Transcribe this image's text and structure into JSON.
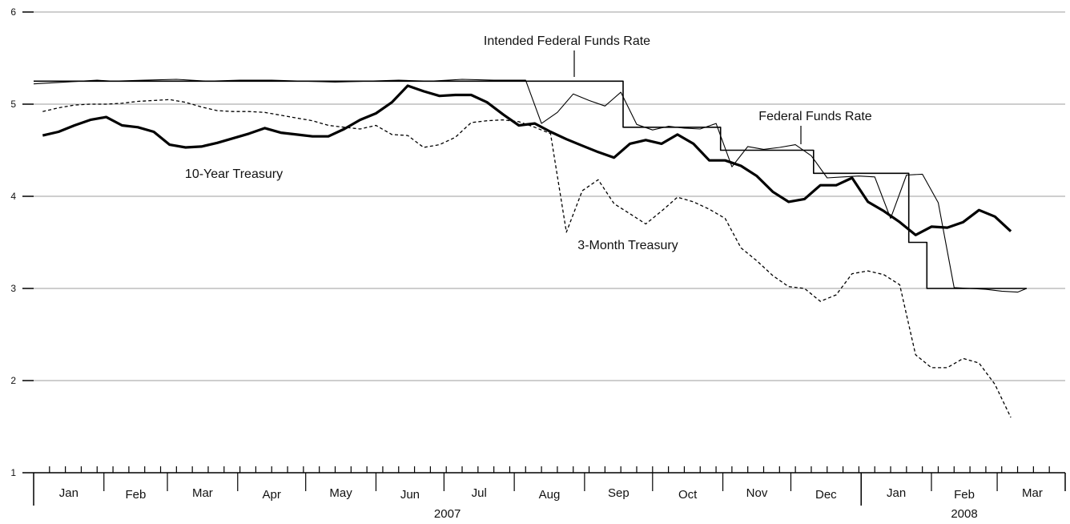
{
  "chart_data": {
    "type": "line",
    "title": "",
    "xlabel": "",
    "ylabel": "",
    "ylim": [
      1,
      6
    ],
    "yticks": [
      1,
      2,
      3,
      4,
      5,
      6
    ],
    "grid": true,
    "x_range": [
      "2007-01-01",
      "2008-03-31"
    ],
    "months": [
      {
        "label": "Jan",
        "start": "2007-01-01",
        "end": "2007-02-01"
      },
      {
        "label": "Feb",
        "start": "2007-02-01",
        "end": "2007-03-01"
      },
      {
        "label": "Mar",
        "start": "2007-03-01",
        "end": "2007-04-01"
      },
      {
        "label": "Apr",
        "start": "2007-04-01",
        "end": "2007-05-01"
      },
      {
        "label": "May",
        "start": "2007-05-01",
        "end": "2007-06-01"
      },
      {
        "label": "Jun",
        "start": "2007-06-01",
        "end": "2007-07-01"
      },
      {
        "label": "Jul",
        "start": "2007-07-01",
        "end": "2007-08-01"
      },
      {
        "label": "Aug",
        "start": "2007-08-01",
        "end": "2007-09-01"
      },
      {
        "label": "Sep",
        "start": "2007-09-01",
        "end": "2007-10-01"
      },
      {
        "label": "Oct",
        "start": "2007-10-01",
        "end": "2007-11-01"
      },
      {
        "label": "Nov",
        "start": "2007-11-01",
        "end": "2007-12-01"
      },
      {
        "label": "Dec",
        "start": "2007-12-01",
        "end": "2008-01-01"
      },
      {
        "label": "Jan",
        "start": "2008-01-01",
        "end": "2008-02-01"
      },
      {
        "label": "Feb",
        "start": "2008-02-01",
        "end": "2008-03-01"
      },
      {
        "label": "Mar",
        "start": "2008-03-01",
        "end": "2008-04-01"
      }
    ],
    "years": [
      {
        "label": "2007",
        "start": "2007-01-01",
        "end": "2008-01-01"
      },
      {
        "label": "2008",
        "start": "2008-01-01",
        "end": "2008-04-01"
      }
    ],
    "annotations": [
      {
        "text": "Intended Federal Funds Rate",
        "x": "2007-08-15",
        "y": 5.25
      },
      {
        "text": "Federal Funds Rate",
        "x": "2007-12-04",
        "y": 4.56
      },
      {
        "text": "10-Year Treasury",
        "x": "",
        "y": null
      },
      {
        "text": "3-Month Treasury",
        "x": "",
        "y": null
      }
    ],
    "series": [
      {
        "name": "Intended Federal Funds Rate",
        "style": "step",
        "color": "#000000",
        "points": [
          [
            "2007-01-01",
            5.25
          ],
          [
            "2007-09-18",
            5.25
          ],
          [
            "2007-09-18",
            4.75
          ],
          [
            "2007-10-31",
            4.75
          ],
          [
            "2007-10-31",
            4.5
          ],
          [
            "2007-12-11",
            4.5
          ],
          [
            "2007-12-11",
            4.25
          ],
          [
            "2008-01-22",
            4.25
          ],
          [
            "2008-01-22",
            3.5
          ],
          [
            "2008-01-30",
            3.5
          ],
          [
            "2008-01-30",
            3.0
          ],
          [
            "2008-03-14",
            3.0
          ]
        ]
      },
      {
        "name": "Federal Funds Rate",
        "style": "thin",
        "color": "#000000",
        "points": [
          [
            "2007-01-01",
            5.22
          ],
          [
            "2007-01-15",
            5.24
          ],
          [
            "2007-01-29",
            5.26
          ],
          [
            "2007-02-05",
            5.25
          ],
          [
            "2007-02-19",
            5.26
          ],
          [
            "2007-03-05",
            5.27
          ],
          [
            "2007-03-19",
            5.25
          ],
          [
            "2007-04-02",
            5.26
          ],
          [
            "2007-04-16",
            5.26
          ],
          [
            "2007-04-30",
            5.25
          ],
          [
            "2007-05-14",
            5.24
          ],
          [
            "2007-05-28",
            5.25
          ],
          [
            "2007-06-11",
            5.26
          ],
          [
            "2007-06-25",
            5.25
          ],
          [
            "2007-07-09",
            5.27
          ],
          [
            "2007-07-23",
            5.26
          ],
          [
            "2007-08-06",
            5.26
          ],
          [
            "2007-08-13",
            4.79
          ],
          [
            "2007-08-20",
            4.91
          ],
          [
            "2007-08-27",
            5.11
          ],
          [
            "2007-09-03",
            5.04
          ],
          [
            "2007-09-10",
            4.98
          ],
          [
            "2007-09-17",
            5.13
          ],
          [
            "2007-09-24",
            4.78
          ],
          [
            "2007-10-01",
            4.72
          ],
          [
            "2007-10-08",
            4.76
          ],
          [
            "2007-10-15",
            4.74
          ],
          [
            "2007-10-22",
            4.73
          ],
          [
            "2007-10-29",
            4.79
          ],
          [
            "2007-11-05",
            4.32
          ],
          [
            "2007-11-12",
            4.54
          ],
          [
            "2007-11-19",
            4.51
          ],
          [
            "2007-11-26",
            4.53
          ],
          [
            "2007-12-03",
            4.56
          ],
          [
            "2007-12-10",
            4.44
          ],
          [
            "2007-12-17",
            4.2
          ],
          [
            "2007-12-24",
            4.21
          ],
          [
            "2007-12-31",
            4.22
          ],
          [
            "2008-01-07",
            4.21
          ],
          [
            "2008-01-14",
            3.76
          ],
          [
            "2008-01-21",
            4.23
          ],
          [
            "2008-01-28",
            4.24
          ],
          [
            "2008-02-04",
            3.93
          ],
          [
            "2008-02-11",
            3.01
          ],
          [
            "2008-02-18",
            3.0
          ],
          [
            "2008-02-25",
            2.99
          ],
          [
            "2008-03-03",
            2.97
          ],
          [
            "2008-03-10",
            2.96
          ],
          [
            "2008-03-14",
            3.0
          ]
        ]
      },
      {
        "name": "10-Year Treasury",
        "style": "thick",
        "color": "#000000",
        "points": [
          [
            "2007-01-05",
            4.66
          ],
          [
            "2007-01-12",
            4.7
          ],
          [
            "2007-01-19",
            4.77
          ],
          [
            "2007-01-26",
            4.83
          ],
          [
            "2007-02-02",
            4.86
          ],
          [
            "2007-02-09",
            4.77
          ],
          [
            "2007-02-16",
            4.75
          ],
          [
            "2007-02-23",
            4.7
          ],
          [
            "2007-03-02",
            4.56
          ],
          [
            "2007-03-09",
            4.53
          ],
          [
            "2007-03-16",
            4.54
          ],
          [
            "2007-03-23",
            4.58
          ],
          [
            "2007-03-30",
            4.63
          ],
          [
            "2007-04-06",
            4.68
          ],
          [
            "2007-04-13",
            4.74
          ],
          [
            "2007-04-20",
            4.69
          ],
          [
            "2007-04-27",
            4.67
          ],
          [
            "2007-05-04",
            4.65
          ],
          [
            "2007-05-11",
            4.65
          ],
          [
            "2007-05-18",
            4.73
          ],
          [
            "2007-05-25",
            4.83
          ],
          [
            "2007-06-01",
            4.9
          ],
          [
            "2007-06-08",
            5.02
          ],
          [
            "2007-06-15",
            5.2
          ],
          [
            "2007-06-22",
            5.14
          ],
          [
            "2007-06-29",
            5.09
          ],
          [
            "2007-07-06",
            5.1
          ],
          [
            "2007-07-13",
            5.1
          ],
          [
            "2007-07-20",
            5.02
          ],
          [
            "2007-07-27",
            4.89
          ],
          [
            "2007-08-03",
            4.77
          ],
          [
            "2007-08-10",
            4.79
          ],
          [
            "2007-08-17",
            4.7
          ],
          [
            "2007-08-24",
            4.62
          ],
          [
            "2007-08-31",
            4.55
          ],
          [
            "2007-09-07",
            4.48
          ],
          [
            "2007-09-14",
            4.42
          ],
          [
            "2007-09-21",
            4.57
          ],
          [
            "2007-09-28",
            4.61
          ],
          [
            "2007-10-05",
            4.57
          ],
          [
            "2007-10-12",
            4.67
          ],
          [
            "2007-10-19",
            4.57
          ],
          [
            "2007-10-26",
            4.39
          ],
          [
            "2007-11-02",
            4.39
          ],
          [
            "2007-11-09",
            4.33
          ],
          [
            "2007-11-16",
            4.22
          ],
          [
            "2007-11-23",
            4.05
          ],
          [
            "2007-11-30",
            3.94
          ],
          [
            "2007-12-07",
            3.97
          ],
          [
            "2007-12-14",
            4.12
          ],
          [
            "2007-12-21",
            4.12
          ],
          [
            "2007-12-28",
            4.2
          ],
          [
            "2008-01-04",
            3.94
          ],
          [
            "2008-01-11",
            3.84
          ],
          [
            "2008-01-18",
            3.72
          ],
          [
            "2008-01-25",
            3.58
          ],
          [
            "2008-02-01",
            3.67
          ],
          [
            "2008-02-08",
            3.66
          ],
          [
            "2008-02-15",
            3.72
          ],
          [
            "2008-02-22",
            3.85
          ],
          [
            "2008-02-29",
            3.78
          ],
          [
            "2008-03-07",
            3.62
          ]
        ]
      },
      {
        "name": "3-Month Treasury",
        "style": "dashed",
        "color": "#000000",
        "points": [
          [
            "2007-01-05",
            4.92
          ],
          [
            "2007-01-12",
            4.96
          ],
          [
            "2007-01-19",
            4.99
          ],
          [
            "2007-01-26",
            5.0
          ],
          [
            "2007-02-02",
            5.0
          ],
          [
            "2007-02-09",
            5.01
          ],
          [
            "2007-02-16",
            5.03
          ],
          [
            "2007-02-23",
            5.04
          ],
          [
            "2007-03-02",
            5.05
          ],
          [
            "2007-03-09",
            5.02
          ],
          [
            "2007-03-16",
            4.97
          ],
          [
            "2007-03-23",
            4.93
          ],
          [
            "2007-03-30",
            4.92
          ],
          [
            "2007-04-06",
            4.92
          ],
          [
            "2007-04-13",
            4.91
          ],
          [
            "2007-04-20",
            4.88
          ],
          [
            "2007-04-27",
            4.85
          ],
          [
            "2007-05-04",
            4.82
          ],
          [
            "2007-05-11",
            4.77
          ],
          [
            "2007-05-18",
            4.75
          ],
          [
            "2007-05-25",
            4.73
          ],
          [
            "2007-06-01",
            4.77
          ],
          [
            "2007-06-08",
            4.67
          ],
          [
            "2007-06-15",
            4.66
          ],
          [
            "2007-06-22",
            4.53
          ],
          [
            "2007-06-29",
            4.56
          ],
          [
            "2007-07-06",
            4.64
          ],
          [
            "2007-07-13",
            4.8
          ],
          [
            "2007-07-20",
            4.82
          ],
          [
            "2007-07-27",
            4.83
          ],
          [
            "2007-08-03",
            4.81
          ],
          [
            "2007-08-10",
            4.75
          ],
          [
            "2007-08-17",
            4.68
          ],
          [
            "2007-08-24",
            3.61
          ],
          [
            "2007-08-31",
            4.06
          ],
          [
            "2007-09-07",
            4.18
          ],
          [
            "2007-09-14",
            3.92
          ],
          [
            "2007-09-21",
            3.81
          ],
          [
            "2007-09-28",
            3.7
          ],
          [
            "2007-10-05",
            3.84
          ],
          [
            "2007-10-12",
            3.99
          ],
          [
            "2007-10-19",
            3.94
          ],
          [
            "2007-10-26",
            3.86
          ],
          [
            "2007-11-02",
            3.76
          ],
          [
            "2007-11-09",
            3.44
          ],
          [
            "2007-11-16",
            3.3
          ],
          [
            "2007-11-23",
            3.14
          ],
          [
            "2007-11-30",
            3.02
          ],
          [
            "2007-12-07",
            3.0
          ],
          [
            "2007-12-14",
            2.86
          ],
          [
            "2007-12-21",
            2.93
          ],
          [
            "2007-12-28",
            3.16
          ],
          [
            "2008-01-04",
            3.19
          ],
          [
            "2008-01-11",
            3.15
          ],
          [
            "2008-01-18",
            3.04
          ],
          [
            "2008-01-25",
            2.28
          ],
          [
            "2008-02-01",
            2.14
          ],
          [
            "2008-02-08",
            2.14
          ],
          [
            "2008-02-15",
            2.24
          ],
          [
            "2008-02-22",
            2.19
          ],
          [
            "2008-02-29",
            1.96
          ],
          [
            "2008-03-07",
            1.6
          ]
        ]
      }
    ]
  }
}
